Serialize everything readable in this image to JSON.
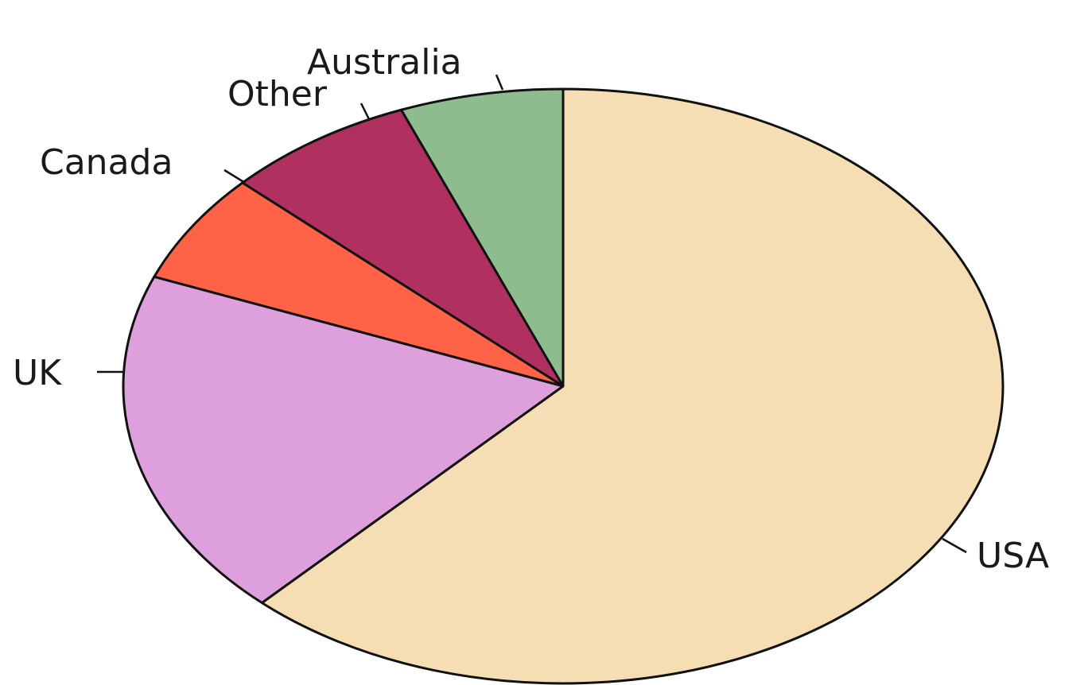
{
  "chart_data": {
    "type": "pie",
    "title": "",
    "start_angle_deg": 90,
    "direction": "counterclockwise",
    "slices": [
      {
        "label": "Australia",
        "value": 6,
        "color": "#8fbc8f"
      },
      {
        "label": "Other",
        "value": 7,
        "color": "#b03060"
      },
      {
        "label": "Canada",
        "value": 6,
        "color": "#ff6347"
      },
      {
        "label": "UK",
        "value": 19,
        "color": "#dda0dd"
      },
      {
        "label": "USA",
        "value": 62,
        "color": "#f5deb3"
      }
    ]
  }
}
